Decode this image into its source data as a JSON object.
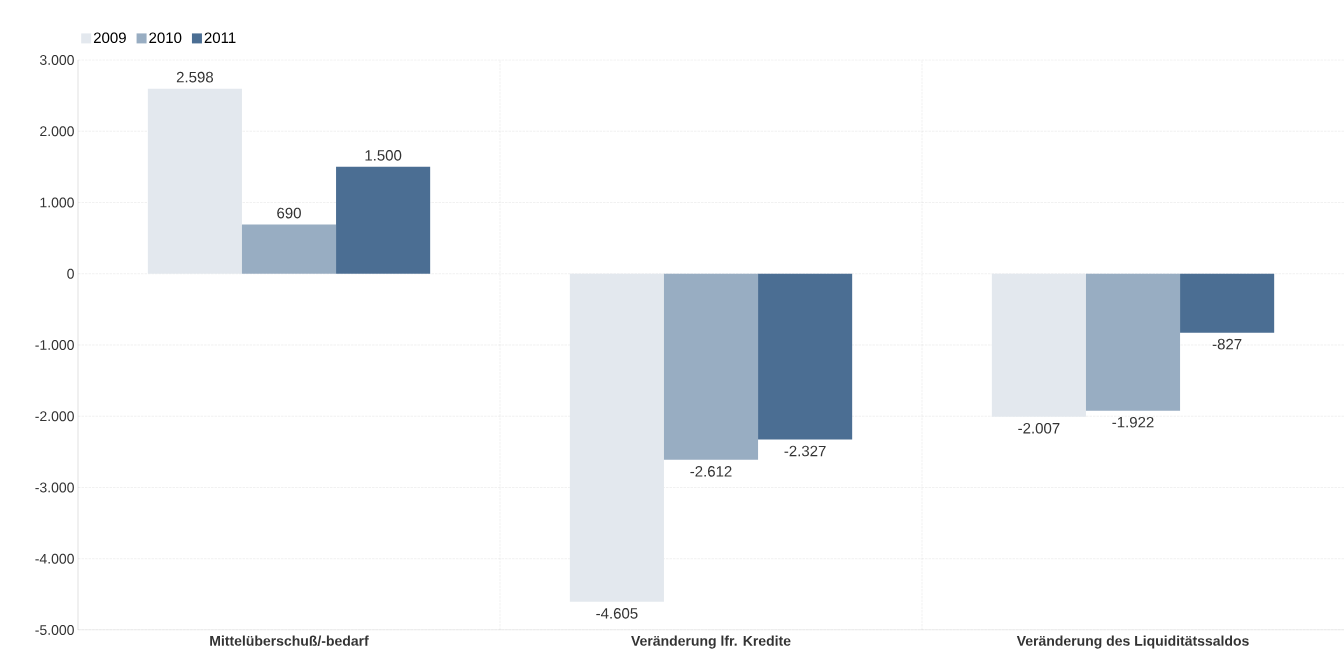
{
  "chart_data": {
    "type": "bar",
    "categories": [
      "Mittelüberschuß/-bedarf",
      "Veränderung lfr. Kredite",
      "Veränderung des Liquiditätssaldos"
    ],
    "series": [
      {
        "name": "2009",
        "color": "#e3e8ee",
        "values": [
          2598,
          -4605,
          -2007
        ],
        "value_labels": [
          "2.598",
          "-4.605",
          "-2.007"
        ]
      },
      {
        "name": "2010",
        "color": "#98adc2",
        "values": [
          690,
          -2612,
          -1922
        ],
        "value_labels": [
          "690",
          "-2.612",
          "-1.922"
        ]
      },
      {
        "name": "2011",
        "color": "#4b6e93",
        "values": [
          1500,
          -2327,
          -827
        ],
        "value_labels": [
          "1.500",
          "-2.327",
          "-827"
        ]
      }
    ],
    "ylim": [
      -5000,
      3000
    ],
    "yticks": [
      {
        "value": -5000,
        "label": "-5.000"
      },
      {
        "value": -4000,
        "label": "-4.000"
      },
      {
        "value": -3000,
        "label": "-3.000"
      },
      {
        "value": -2000,
        "label": "-2.000"
      },
      {
        "value": -1000,
        "label": "-1.000"
      },
      0,
      {
        "value": 1000,
        "label": "1.000"
      },
      {
        "value": 2000,
        "label": "2.000"
      },
      {
        "value": 3000,
        "label": "3.000"
      }
    ],
    "grid": true,
    "legend": "top left"
  }
}
